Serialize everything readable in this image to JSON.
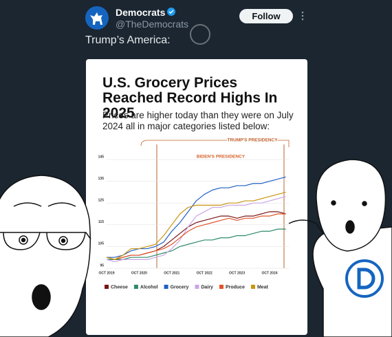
{
  "tweet": {
    "name": "Democrats",
    "handle": "@TheDemocrats",
    "follow": "Follow",
    "text": "Trump’s America:"
  },
  "chart_data": {
    "type": "line",
    "title": "U.S. Grocery Prices Reached Record Highs In 2025",
    "subtitle": "Prices are higher today than they were on July 2024 all in major categories listed below:",
    "annotations": [
      "TRUMP'S PRESIDENCY",
      "BIDEN'S PRESIDENCY"
    ],
    "categories": [
      "OCT 2019",
      null,
      null,
      null,
      "OCT 2020",
      null,
      null,
      null,
      "OCT 2021",
      null,
      null,
      null,
      "OCT 2022",
      null,
      null,
      null,
      "OCT 2023",
      null,
      null,
      null,
      "OCT 2024",
      null,
      null
    ],
    "series": [
      {
        "name": "Cheese",
        "color": "#7a1518",
        "values": [
          100,
          99,
          100,
          101,
          101,
          102,
          103,
          105,
          108,
          111,
          114,
          116,
          117,
          118,
          119,
          119,
          118,
          119,
          119,
          120,
          121,
          121,
          120
        ]
      },
      {
        "name": "Alcohol",
        "color": "#2e8a6a",
        "values": [
          99,
          99,
          99,
          100,
          100,
          100,
          101,
          102,
          103,
          105,
          106,
          107,
          108,
          108,
          109,
          109,
          110,
          110,
          111,
          112,
          112,
          113,
          113
        ]
      },
      {
        "name": "Grocery",
        "color": "#1f5fc4",
        "values": [
          100,
          100,
          101,
          103,
          104,
          104,
          105,
          107,
          112,
          116,
          121,
          126,
          129,
          131,
          132,
          132,
          133,
          133,
          134,
          134,
          135,
          136,
          137
        ]
      },
      {
        "name": "Dairy",
        "color": "#c9a6e6",
        "values": [
          99,
          98,
          99,
          99,
          99,
          99,
          100,
          101,
          104,
          108,
          114,
          119,
          121,
          123,
          123,
          124,
          124,
          124,
          125,
          125,
          126,
          127,
          128
        ]
      },
      {
        "name": "Produce",
        "color": "#e0542a",
        "values": [
          100,
          99,
          100,
          101,
          101,
          102,
          103,
          104,
          106,
          109,
          112,
          114,
          115,
          116,
          117,
          118,
          117,
          118,
          118,
          119,
          119,
          120,
          120
        ]
      },
      {
        "name": "Meat",
        "color": "#c9950f",
        "values": [
          100,
          99,
          101,
          104,
          104,
          105,
          106,
          110,
          115,
          120,
          123,
          124,
          124,
          124,
          124,
          125,
          125,
          126,
          126,
          127,
          128,
          129,
          130
        ]
      }
    ],
    "ylim": [
      95,
      145
    ],
    "yticks": [
      95,
      105,
      115,
      125,
      135,
      145
    ],
    "grid": true
  }
}
